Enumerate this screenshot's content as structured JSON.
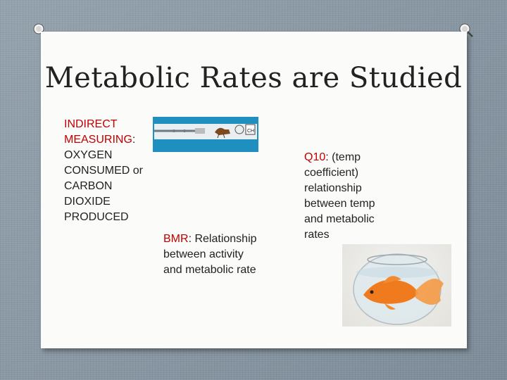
{
  "title": "Metabolic Rates are Studied",
  "blocks": {
    "indirect": {
      "highlight": "INDIRECT MEASURING",
      "colon": ":",
      "text": "OXYGEN CONSUMED or CARBON DIOXIDE PRODUCED"
    },
    "bmr": {
      "highlight": "BMR",
      "colon": ":",
      "text": "Relationship between activity and metabolic rate"
    },
    "q10": {
      "highlight": "Q10",
      "text": ": (temp coefficient) relationship between temp and metabolic rates"
    }
  },
  "apparatus_label": "CH",
  "colors": {
    "highlight": "#c00000",
    "apparatus_bg": "#1f8fc0",
    "fish": "#f07a1e"
  },
  "icons": [
    "pushpin-icon",
    "respirometer-image",
    "goldfish-bowl-image"
  ]
}
